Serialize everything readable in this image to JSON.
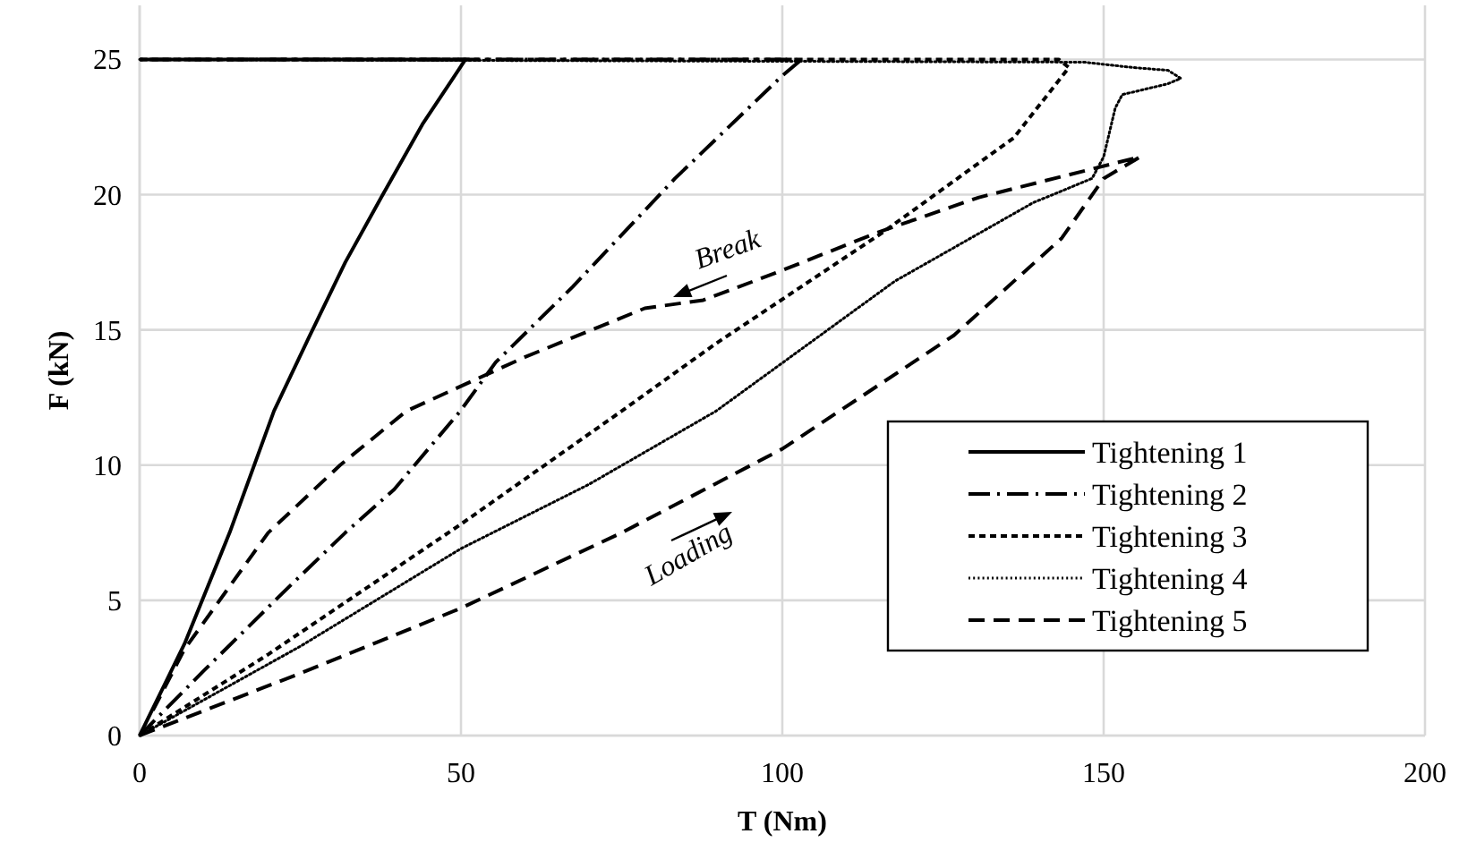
{
  "chart_data": {
    "type": "line",
    "xlabel": "T (Nm)",
    "ylabel": "F (kN)",
    "xlim": [
      0,
      200
    ],
    "xticks": [
      0,
      50,
      100,
      150,
      200
    ],
    "ylim": [
      0,
      27
    ],
    "yticks": [
      0,
      5,
      10,
      15,
      20,
      25
    ],
    "grid": true,
    "legend": "right",
    "marker": "none",
    "annotations": [
      "Break",
      "Loading"
    ],
    "series": [
      {
        "name": "Tightening 1",
        "color": "#000000",
        "line_style": "solid",
        "x": [
          0,
          7,
          14,
          20.9,
          26.5,
          32,
          37.6,
          44,
          50.7,
          0
        ],
        "values": [
          0,
          3.4,
          7.5,
          12,
          14.8,
          17.5,
          19.9,
          22.6,
          25,
          25
        ]
      },
      {
        "name": "Tightening 2",
        "color": "#000000",
        "line_style": "dashdot",
        "x": [
          0,
          10,
          22.8,
          32,
          39.6,
          49.9,
          55.4,
          67.4,
          83.3,
          100,
          103,
          0
        ],
        "values": [
          0,
          2.4,
          5.4,
          7.5,
          9.1,
          12,
          13.8,
          16.6,
          20.6,
          24.4,
          25,
          25
        ]
      },
      {
        "name": "Tightening 3",
        "color": "#000000",
        "line_style": "dashed",
        "x": [
          0,
          20,
          49.9,
          75,
          89.7,
          115.6,
          136,
          144.6,
          143,
          0
        ],
        "values": [
          0,
          3,
          7.8,
          12,
          14.5,
          18.6,
          22.1,
          24.7,
          25,
          25
        ]
      },
      {
        "name": "Tightening 4",
        "color": "#000000",
        "line_style": "dotted",
        "x": [
          0,
          25,
          49.9,
          70,
          89.7,
          117.5,
          139,
          148.2,
          150,
          151.8,
          152.9,
          160,
          162,
          160,
          154.6,
          147,
          0
        ],
        "values": [
          0,
          3.3,
          6.9,
          9.3,
          12,
          16.8,
          19.7,
          20.6,
          21.4,
          23.2,
          23.7,
          24.1,
          24.3,
          24.6,
          24.7,
          24.9,
          25
        ]
      },
      {
        "name": "Tightening 5",
        "color": "#000000",
        "line_style": "dashed",
        "x": [
          0,
          25,
          49.9,
          75,
          100,
          126.7,
          143.5,
          150,
          155.7,
          149,
          130.6,
          114.8,
          98.9,
          87.7,
          78.6,
          60,
          41.5,
          31.2,
          20,
          7,
          2
        ],
        "values": [
          0,
          2.3,
          4.7,
          7.5,
          10.6,
          14.8,
          18.4,
          20.6,
          21.4,
          21,
          19.9,
          18.6,
          17.1,
          16.1,
          15.8,
          14,
          12,
          10,
          7.5,
          3.2,
          0.9
        ]
      }
    ]
  }
}
